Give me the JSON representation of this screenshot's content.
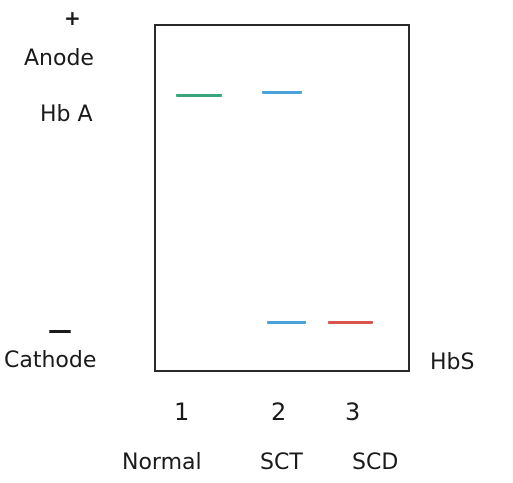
{
  "labels": {
    "plus": "+",
    "anode": "Anode",
    "hb_a": "Hb A",
    "minus": "—",
    "cathode": "Cathode",
    "hbs": "HbS"
  },
  "lanes": [
    {
      "number": "1",
      "name": "Normal"
    },
    {
      "number": "2",
      "name": "SCT"
    },
    {
      "number": "3",
      "name": "SCD"
    }
  ],
  "colors": {
    "band_lane1_hba": "#3aa57a",
    "band_lane2_hba": "#4aa3d8",
    "band_lane2_hbs": "#4aa3d8",
    "band_lane3_hbs": "#d9534f",
    "gel_border": "#2a2a2a"
  }
}
